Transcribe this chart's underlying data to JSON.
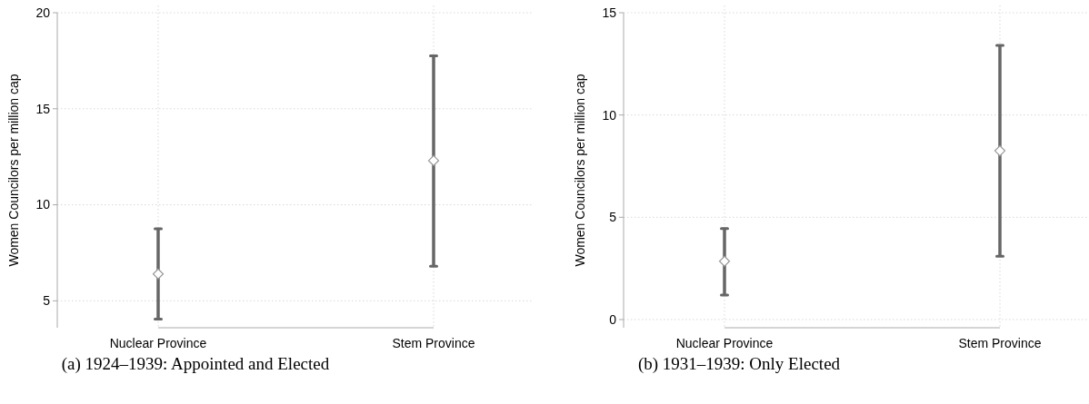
{
  "chart_data": [
    {
      "type": "scatter",
      "categories": [
        "Nuclear Province",
        "Stem Province"
      ],
      "ylabel": "Women Councilors per million cap",
      "ylim": [
        3.6,
        20
      ],
      "yticks": [
        5,
        10,
        15,
        20
      ],
      "grid": true,
      "marker": "diamond",
      "annotations": [
        "(a) 1924–1939: Appointed and Elected"
      ],
      "series": [
        {
          "color": "#999999",
          "values": [
            6.4,
            12.3
          ],
          "errors": [
            [
              4.05,
              8.75
            ],
            [
              6.8,
              17.75
            ]
          ]
        }
      ]
    },
    {
      "type": "scatter",
      "categories": [
        "Nuclear Province",
        "Stem Province"
      ],
      "ylabel": "Women Councilors per million cap",
      "ylim": [
        -0.4,
        15
      ],
      "yticks": [
        0,
        5,
        10,
        15
      ],
      "grid": true,
      "marker": "diamond",
      "annotations": [
        "(b) 1931–1939: Only Elected"
      ],
      "series": [
        {
          "color": "#999999",
          "values": [
            2.85,
            8.25
          ],
          "errors": [
            [
              1.2,
              4.45
            ],
            [
              3.1,
              13.4
            ]
          ]
        }
      ]
    }
  ]
}
